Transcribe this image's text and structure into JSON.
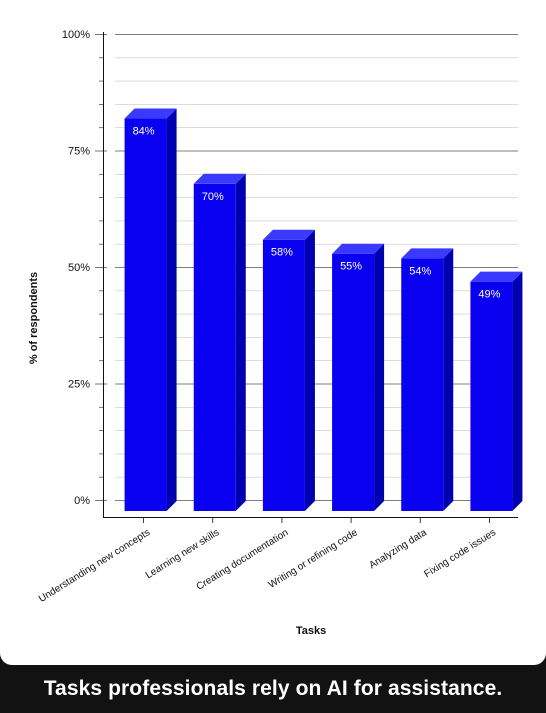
{
  "caption": "Tasks professionals rely on AI for assistance.",
  "colors": {
    "bar_front": "#0a00f0",
    "bar_top": "#3a3aff",
    "bar_side": "#0000b0",
    "grid": "#c8c8c8",
    "page_background": "#121212",
    "card_background": "#ffffff"
  },
  "chart_data": {
    "type": "bar",
    "style": "3d",
    "categories": [
      "Understanding new concepts",
      "Learning new skills",
      "Creating documentation",
      "Writing or refining code",
      "Analyzing data",
      "Fixing code issues"
    ],
    "values": [
      84,
      70,
      58,
      55,
      54,
      49
    ],
    "data_labels": [
      "84%",
      "70%",
      "58%",
      "55%",
      "54%",
      "49%"
    ],
    "title": "",
    "xlabel": "Tasks",
    "ylabel": "% of respondents",
    "ylim": [
      0,
      100
    ],
    "yticks": [
      0,
      25,
      50,
      75,
      100
    ],
    "ytick_labels": [
      "0%",
      "25%",
      "50%",
      "75%",
      "100%"
    ],
    "grid": true,
    "legend": false
  }
}
